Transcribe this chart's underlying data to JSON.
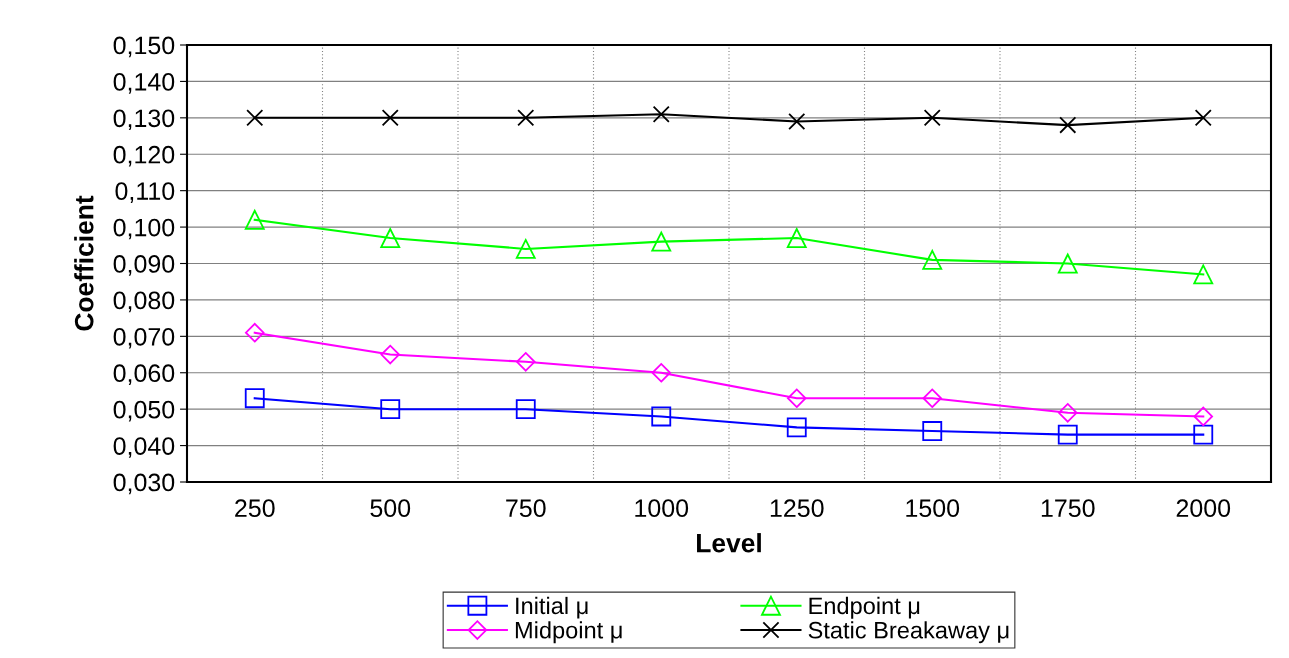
{
  "chart_data": {
    "type": "line",
    "xlabel": "Level",
    "ylabel": "Coefficient",
    "categories": [
      "250",
      "500",
      "750",
      "1000",
      "1250",
      "1500",
      "1750",
      "2000"
    ],
    "series": [
      {
        "name": "Initial μ",
        "color": "#0000ff",
        "marker": "square",
        "values": [
          0.053,
          0.05,
          0.05,
          0.048,
          0.045,
          0.044,
          0.043,
          0.043
        ]
      },
      {
        "name": "Midpoint μ",
        "color": "#ff00ff",
        "marker": "diamond",
        "values": [
          0.071,
          0.065,
          0.063,
          0.06,
          0.053,
          0.053,
          0.049,
          0.048
        ]
      },
      {
        "name": "Endpoint μ",
        "color": "#00ff00",
        "marker": "triangle",
        "values": [
          0.102,
          0.097,
          0.094,
          0.096,
          0.097,
          0.091,
          0.09,
          0.087
        ]
      },
      {
        "name": "Static Breakaway μ",
        "color": "#000000",
        "marker": "cross",
        "values": [
          0.13,
          0.13,
          0.13,
          0.131,
          0.129,
          0.13,
          0.128,
          0.13
        ]
      }
    ],
    "ylim": [
      0.03,
      0.15
    ],
    "yticks": [
      {
        "value": 0.03,
        "label": "0,030"
      },
      {
        "value": 0.04,
        "label": "0,040"
      },
      {
        "value": 0.05,
        "label": "0,050"
      },
      {
        "value": 0.06,
        "label": "0,060"
      },
      {
        "value": 0.07,
        "label": "0,070"
      },
      {
        "value": 0.08,
        "label": "0,080"
      },
      {
        "value": 0.09,
        "label": "0,090"
      },
      {
        "value": 0.1,
        "label": "0,100"
      },
      {
        "value": 0.11,
        "label": "0,110"
      },
      {
        "value": 0.12,
        "label": "0,120"
      },
      {
        "value": 0.13,
        "label": "0,130"
      },
      {
        "value": 0.14,
        "label": "0,140"
      },
      {
        "value": 0.15,
        "label": "0,150"
      }
    ],
    "grid": true,
    "legend": "bottom",
    "line_style": "solid"
  }
}
